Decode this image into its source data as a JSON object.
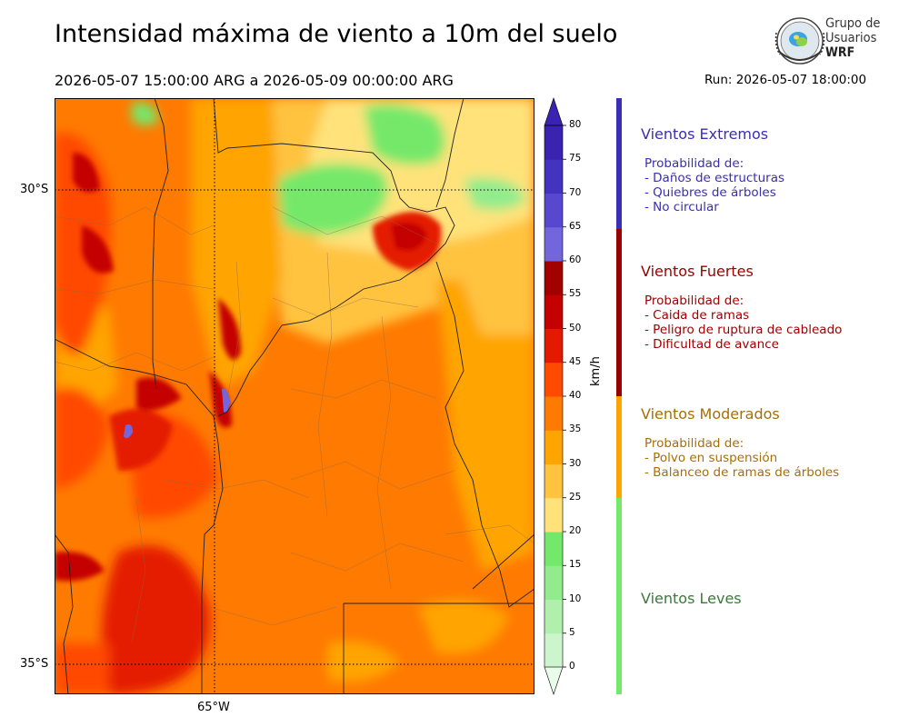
{
  "header": {
    "title": "Intensidad máxima de viento a 10m del suelo",
    "period": "2026-05-07 15:00:00 ARG  a  2026-05-09 00:00:00 ARG",
    "run": "Run: 2026-05-07 18:00:00"
  },
  "logo": {
    "line1": "Grupo de",
    "line2": "Usuarios",
    "brand": "WRF",
    "icon": "globe-emblem-icon"
  },
  "map": {
    "lat_labels": [
      "30°S",
      "35°S"
    ],
    "lon_labels": [
      "65°W"
    ]
  },
  "colorbar": {
    "unit": "km/h",
    "ticks": [
      "0",
      "5",
      "10",
      "15",
      "20",
      "25",
      "30",
      "35",
      "40",
      "45",
      "50",
      "55",
      "60",
      "65",
      "70",
      "75",
      "80"
    ],
    "colors": [
      "#e9fbe9",
      "#cdf5cd",
      "#b0f0ac",
      "#92ec8c",
      "#74e86a",
      "#ffe27a",
      "#ffc33f",
      "#ffa400",
      "#ff7a00",
      "#ff4a00",
      "#e41a00",
      "#c40000",
      "#a30000",
      "#7366dd",
      "#5848d0",
      "#4333c0",
      "#3a23b0"
    ]
  },
  "categories": [
    {
      "title": "Vientos Extremos",
      "color": "#3a2eb5",
      "lines": [
        "Probabilidad de:",
        "- Daños de estructuras",
        "- Quiebres de árboles",
        "- No circular"
      ]
    },
    {
      "title": "Vientos Fuertes",
      "color": "#9b0000",
      "lines": [
        "Probabilidad de:",
        "- Caida de ramas",
        "- Peligro de ruptura de cableado",
        "- Dificultad de avance"
      ]
    },
    {
      "title": "Vientos Moderados",
      "color": "#a86f00",
      "lines": [
        "Probabilidad de:",
        "- Polvo en suspensión",
        "- Balanceo de ramas de árboles"
      ]
    },
    {
      "title": "Vientos Leves",
      "color": "#3a7a3a",
      "lines": []
    }
  ]
}
